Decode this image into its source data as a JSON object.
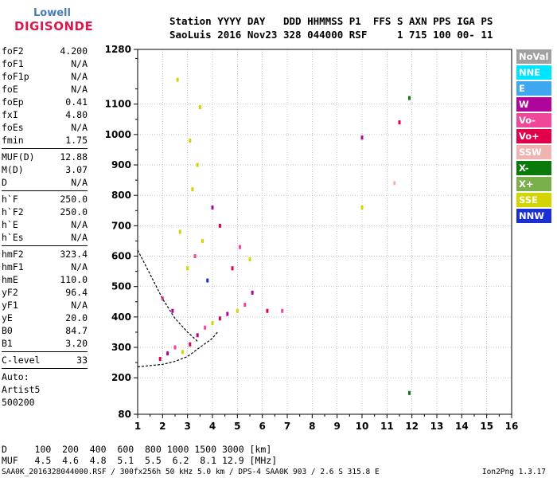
{
  "logo": {
    "line1": "Lowell",
    "line2": "DIGISONDE"
  },
  "header": {
    "line1": "Station YYYY DAY   DDD HHMMSS P1  FFS S AXN PPS IGA PS",
    "line2": "SaoLuis 2016 Nov23 328 044000 RSF     1 715 100 00- 11"
  },
  "params_groups": [
    [
      {
        "name": "foF2",
        "value": "4.200"
      },
      {
        "name": "foF1",
        "value": "N/A"
      },
      {
        "name": "foF1p",
        "value": "N/A"
      },
      {
        "name": "foE",
        "value": "N/A"
      },
      {
        "name": "foEp",
        "value": "0.41"
      },
      {
        "name": "fxI",
        "value": "4.80"
      },
      {
        "name": "foEs",
        "value": "N/A"
      },
      {
        "name": "fmin",
        "value": "1.75"
      }
    ],
    [
      {
        "name": "MUF(D)",
        "value": "12.88"
      },
      {
        "name": "M(D)",
        "value": "3.07"
      },
      {
        "name": "D",
        "value": "N/A"
      }
    ],
    [
      {
        "name": "h`F",
        "value": "250.0"
      },
      {
        "name": "h`F2",
        "value": "250.0"
      },
      {
        "name": "h`E",
        "value": "N/A"
      },
      {
        "name": "h`Es",
        "value": "N/A"
      }
    ],
    [
      {
        "name": "hmF2",
        "value": "323.4"
      },
      {
        "name": "hmF1",
        "value": "N/A"
      },
      {
        "name": "hmE",
        "value": "110.0"
      },
      {
        "name": "yF2",
        "value": "96.4"
      },
      {
        "name": "yF1",
        "value": "N/A"
      },
      {
        "name": "yE",
        "value": "20.0"
      },
      {
        "name": "B0",
        "value": "84.7"
      },
      {
        "name": "B1",
        "value": "3.20"
      }
    ],
    [
      {
        "name": "C-level",
        "value": "33"
      }
    ]
  ],
  "auto_lines": [
    "Auto:",
    "Artist5",
    "500200"
  ],
  "legend": [
    {
      "label": "NoVal",
      "color": "#a0a0a0"
    },
    {
      "label": "NNE",
      "color": "#00e5ff"
    },
    {
      "label": "E",
      "color": "#3fa7f0"
    },
    {
      "label": "W",
      "color": "#b0059b"
    },
    {
      "label": "Vo-",
      "color": "#f0479a"
    },
    {
      "label": "Vo+",
      "color": "#e2004a"
    },
    {
      "label": "SSW",
      "color": "#f0b4b0"
    },
    {
      "label": "X-",
      "color": "#0a7a0a"
    },
    {
      "label": "X+",
      "color": "#7ab04c"
    },
    {
      "label": "SSE",
      "color": "#d4d400"
    },
    {
      "label": "NNW",
      "color": "#1c2fd4"
    }
  ],
  "bottom_table": {
    "line1": "D     100  200  400  600  800 1000 1500 3000 [km]",
    "line2": "MUF   4.5  4.6  4.8  5.1  5.5  6.2  8.1 12.9 [MHz]"
  },
  "footer": {
    "left": "SAA0K_2016328044000.RSF / 300fx256h 50 kHz 5.0 km / DPS-4 SAA0K 903 / 2.6 S 315.8 E",
    "right": "Ion2Png 1.3.17"
  },
  "chart_data": {
    "type": "scatter",
    "title": "",
    "xlabel": "",
    "ylabel": "",
    "xlim": [
      1,
      16
    ],
    "ylim": [
      80,
      1280
    ],
    "x_ticks": [
      "1",
      "2",
      "3",
      "4",
      "5",
      "6",
      "7",
      "8",
      "9",
      "10",
      "11",
      "12",
      "13",
      "14",
      "15",
      "16"
    ],
    "y_ticks": [
      "80",
      "200",
      "300",
      "400",
      "500",
      "600",
      "700",
      "800",
      "900",
      "1000",
      "1100",
      "1280"
    ],
    "grid": true,
    "points": [
      {
        "x": 1.9,
        "y": 262,
        "s": "Vo+"
      },
      {
        "x": 2.2,
        "y": 280,
        "s": "W"
      },
      {
        "x": 2.5,
        "y": 300,
        "s": "Vo-"
      },
      {
        "x": 2.8,
        "y": 285,
        "s": "SSE"
      },
      {
        "x": 3.1,
        "y": 310,
        "s": "Vo+"
      },
      {
        "x": 3.4,
        "y": 340,
        "s": "W"
      },
      {
        "x": 3.7,
        "y": 365,
        "s": "Vo-"
      },
      {
        "x": 4.0,
        "y": 380,
        "s": "SSE"
      },
      {
        "x": 4.3,
        "y": 395,
        "s": "Vo+"
      },
      {
        "x": 4.6,
        "y": 410,
        "s": "W"
      },
      {
        "x": 5.0,
        "y": 420,
        "s": "SSE"
      },
      {
        "x": 5.3,
        "y": 440,
        "s": "Vo-"
      },
      {
        "x": 5.6,
        "y": 480,
        "s": "W"
      },
      {
        "x": 6.2,
        "y": 420,
        "s": "Vo+"
      },
      {
        "x": 6.8,
        "y": 420,
        "s": "Vo-"
      },
      {
        "x": 3.0,
        "y": 560,
        "s": "SSE"
      },
      {
        "x": 3.3,
        "y": 600,
        "s": "Vo-"
      },
      {
        "x": 3.6,
        "y": 650,
        "s": "SSE"
      },
      {
        "x": 3.2,
        "y": 820,
        "s": "SSE"
      },
      {
        "x": 3.4,
        "y": 900,
        "s": "SSE"
      },
      {
        "x": 3.1,
        "y": 980,
        "s": "SSE"
      },
      {
        "x": 4.0,
        "y": 760,
        "s": "W"
      },
      {
        "x": 4.3,
        "y": 700,
        "s": "Vo+"
      },
      {
        "x": 2.7,
        "y": 680,
        "s": "SSE"
      },
      {
        "x": 2.0,
        "y": 460,
        "s": "Vo-"
      },
      {
        "x": 2.4,
        "y": 420,
        "s": "W"
      },
      {
        "x": 3.8,
        "y": 520,
        "s": "NNW"
      },
      {
        "x": 4.8,
        "y": 560,
        "s": "Vo+"
      },
      {
        "x": 5.1,
        "y": 630,
        "s": "Vo-"
      },
      {
        "x": 5.5,
        "y": 590,
        "s": "SSE"
      },
      {
        "x": 10.0,
        "y": 760,
        "s": "SSE"
      },
      {
        "x": 10.0,
        "y": 990,
        "s": "W"
      },
      {
        "x": 11.9,
        "y": 1120,
        "s": "X-"
      },
      {
        "x": 11.9,
        "y": 150,
        "s": "X-"
      },
      {
        "x": 11.5,
        "y": 1040,
        "s": "Vo+"
      },
      {
        "x": 11.3,
        "y": 840,
        "s": "SSW"
      },
      {
        "x": 2.6,
        "y": 1180,
        "s": "SSE"
      },
      {
        "x": 3.5,
        "y": 1090,
        "s": "SSE"
      }
    ],
    "lines": [
      {
        "name": "",
        "x": [
          1.0,
          1.5,
          2.0,
          2.5,
          3.0,
          3.5,
          4.0,
          4.2
        ],
        "y": [
          236,
          240,
          244,
          254,
          270,
          300,
          330,
          350
        ]
      },
      {
        "name": "",
        "x": [
          1.0,
          1.5,
          2.0,
          2.5,
          3.0,
          3.4
        ],
        "y": [
          620,
          540,
          460,
          395,
          350,
          320
        ]
      }
    ]
  }
}
